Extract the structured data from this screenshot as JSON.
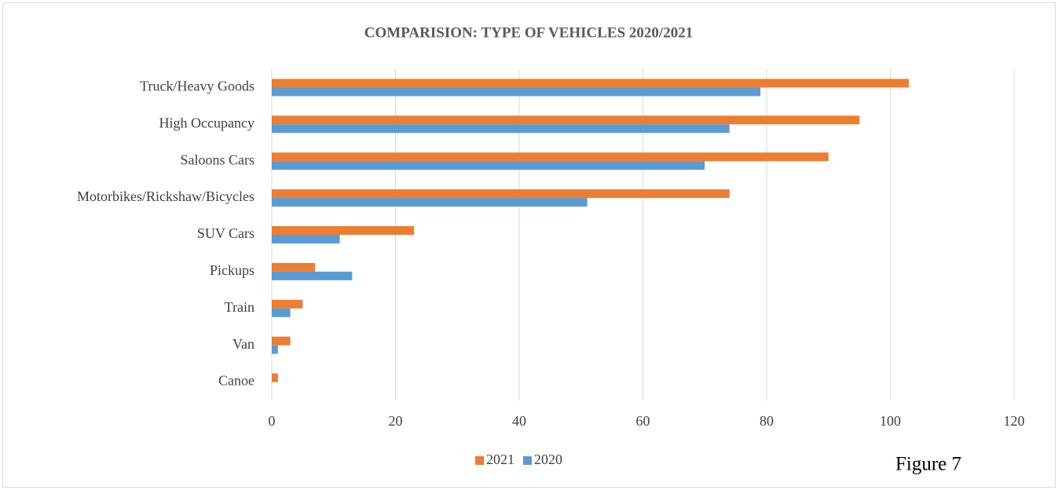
{
  "chart_data": {
    "type": "hbar",
    "title": "COMPARISION: TYPE OF VEHICLES 2020/2021",
    "categories": [
      "Truck/Heavy Goods",
      "High Occupancy",
      "Saloons Cars",
      "Motorbikes/Rickshaw/Bicycles",
      "SUV Cars",
      "Pickups",
      "Train",
      "Van",
      "Canoe"
    ],
    "series": [
      {
        "name": "2021",
        "color": "#ed7d31",
        "values": [
          103,
          95,
          90,
          74,
          23,
          7,
          5,
          3,
          1
        ]
      },
      {
        "name": "2020",
        "color": "#5b9bd5",
        "values": [
          79,
          74,
          70,
          51,
          11,
          13,
          3,
          1,
          0
        ]
      }
    ],
    "xlim": [
      0,
      120
    ],
    "xticks": [
      0,
      20,
      40,
      60,
      80,
      100,
      120
    ],
    "grid": true,
    "legend": "bottom",
    "annotation": "Figure 7"
  }
}
